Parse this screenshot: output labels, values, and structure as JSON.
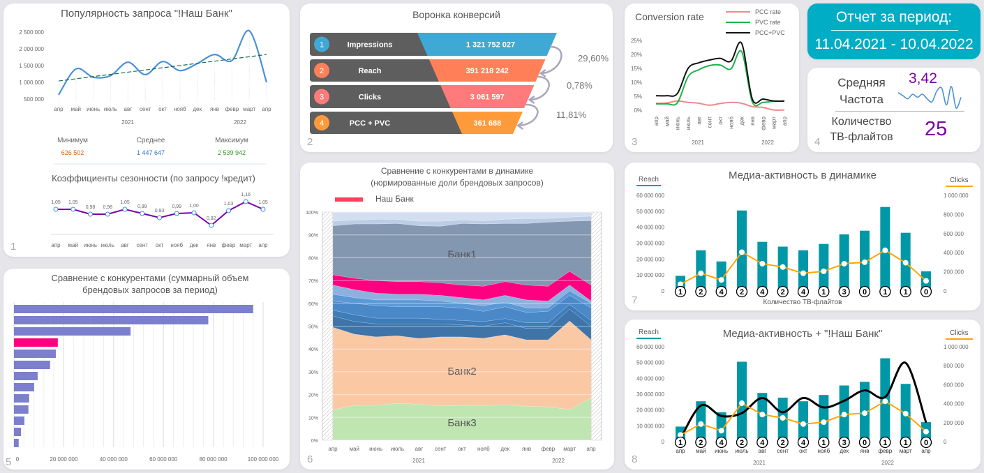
{
  "months": [
    "апр",
    "май",
    "июнь",
    "июль",
    "авг",
    "сент",
    "окт",
    "нояб",
    "дек",
    "янв",
    "февр",
    "март",
    "апр"
  ],
  "years": [
    "2021",
    "2022"
  ],
  "popularity": {
    "title": "Популярность  запроса \"!Наш Банк\"",
    "number": "1",
    "chart_data": {
      "type": "line",
      "title": "Популярность  запроса \"!Наш Банк\"",
      "y_ticks": [
        "2 500 000",
        "2 000 000",
        "1 500 000",
        "1 000 000",
        "500 000"
      ],
      "ylim": [
        500000,
        2500000
      ],
      "smoothed": true,
      "trendline": {
        "style": "dashed",
        "color": "#1a6b4a",
        "start": 1040000,
        "end": 1830000
      },
      "values": [
        626502,
        1400000,
        1150000,
        1200000,
        1600000,
        1230000,
        1620000,
        1350000,
        1560000,
        1830000,
        1650000,
        2539942,
        1000000
      ],
      "color": "#4a90d9"
    },
    "stats": [
      {
        "label": "Минимум",
        "value": "626 502",
        "color": "#e06010"
      },
      {
        "label": "Среднее",
        "value": "1 447 647",
        "color": "#2f78c4"
      },
      {
        "label": "Максимум",
        "value": "2 539 942",
        "color": "#3a9a2a"
      }
    ],
    "seasonality": {
      "title": "Коэффициенты сезонности (по запросу !кредит)",
      "chart_data": {
        "type": "line",
        "values": [
          1.05,
          1.05,
          0.98,
          0.98,
          1.05,
          0.99,
          0.93,
          0.99,
          1.0,
          0.82,
          1.03,
          1.16,
          1.05
        ],
        "labels": [
          "1,05",
          "1,05",
          "0,98",
          "0,98",
          "1,05",
          "0,99",
          "0,93",
          "0,99",
          "1,00",
          "0,82",
          "1,03",
          "1,16",
          "1,05"
        ],
        "color": "#7b00a8"
      }
    }
  },
  "funnel": {
    "title": "Воронка конверсий",
    "number": "2",
    "items": [
      {
        "n": "1",
        "label": "Impressions",
        "value": "1 321 752 027",
        "color": "#3fa8d4"
      },
      {
        "n": "2",
        "label": "Reach",
        "value": "391 218 242",
        "color": "#ff8058"
      },
      {
        "n": "3",
        "label": "Clicks",
        "value": "3 061 597",
        "color": "#ff7a7a"
      },
      {
        "n": "4",
        "label": "PCC + PVC",
        "value": "361 688",
        "color": "#ff9a3a"
      }
    ],
    "rates": [
      "29,60%",
      "0,78%",
      "11,81%"
    ]
  },
  "conversion": {
    "number": "3",
    "chart_data": {
      "type": "line",
      "title": "Conversion rate",
      "y_ticks": [
        "25%",
        "20%",
        "15%",
        "10%",
        "5%",
        "0%"
      ],
      "ylim": [
        0,
        25
      ],
      "series": [
        {
          "name": "PCC rate",
          "color": "#f08a8a",
          "values": [
            2.5,
            2.6,
            3.3,
            2.8,
            2.5,
            1.8,
            2.4,
            2.8,
            2.5,
            1.3,
            1.0,
            0.1,
            0.1
          ]
        },
        {
          "name": "PVC rate",
          "color": "#1db34a",
          "values": [
            2.3,
            2.3,
            2.7,
            12,
            14.5,
            16,
            16.2,
            14.8,
            21,
            3,
            2.8,
            3.2,
            3.2
          ]
        },
        {
          "name": "PCC+PVC",
          "color": "#111111",
          "values": [
            5.2,
            5.2,
            6,
            15,
            17,
            18,
            18.6,
            17.6,
            24,
            4,
            4,
            3.3,
            3.3
          ]
        }
      ]
    }
  },
  "report": {
    "title": "Отчет за период:",
    "period": "11.04.2021 - 10.04.2022"
  },
  "kpi": {
    "number": "4",
    "freq_label": [
      "Средняя",
      "Частота"
    ],
    "freq_value": "3,42",
    "freq_spark": [
      3.5,
      3.3,
      3.1,
      3.4,
      3.2,
      3.4,
      3.1,
      2.9,
      3.6,
      3.8,
      2.7,
      3.9,
      2.5,
      3.2
    ],
    "flights_label": [
      "Количество",
      "ТВ-флайтов"
    ],
    "flights_value": "25",
    "accent": "#7b00a8"
  },
  "competitors_total": {
    "number": "5",
    "chart_data": {
      "type": "bar",
      "orientation": "horizontal",
      "title": "Сравнение с конкурентами (суммарный объем брендовых запросов за период)",
      "x_ticks": [
        "0",
        "20 000 000",
        "40 000 000",
        "60 000 000",
        "80 000 000",
        "100 000 000"
      ],
      "xlim": [
        0,
        100000000
      ],
      "values": [
        96000000,
        78000000,
        46800000,
        17600000,
        16800000,
        14500000,
        9500000,
        8100000,
        6100000,
        5800000,
        4200000,
        2800000,
        1900000
      ],
      "highlight_index": 3,
      "color": "#7b7fce",
      "highlight_color": "#ff0080"
    }
  },
  "competitors_dynamic": {
    "number": "6",
    "chart_data": {
      "type": "area",
      "stacked": "percent",
      "title": "Сравнение с конкурентами в динамике",
      "subtitle": "(нормированные доли брендовых запросов)",
      "y_ticks": [
        "100%",
        "90%",
        "80%",
        "70%",
        "60%",
        "50%",
        "40%",
        "30%",
        "20%",
        "10%",
        "0%"
      ],
      "legend": "Наш Банк",
      "legend_color": "#ff4060",
      "series": [
        {
          "name": "Банк3",
          "color": "#bfe5b0",
          "values": [
            13.3,
            15.3,
            15.3,
            16.2,
            15.8,
            15.1,
            15.3,
            15.1,
            15.6,
            15.0,
            14.6,
            13.5,
            18.5
          ]
        },
        {
          "name": "Банк2",
          "color": "#fbc8a4",
          "values": [
            36.2,
            31.2,
            30.0,
            29.6,
            28.8,
            30.2,
            30.0,
            29.6,
            30.6,
            29.0,
            29.4,
            38.8,
            25.5
          ]
        },
        {
          "color": "#3f74a8",
          "values": [
            5.0,
            5.5,
            5.7,
            5.2,
            6.4,
            5.7,
            5.2,
            5.3,
            5.3,
            5.0,
            5.0,
            5.2,
            6.0
          ]
        },
        {
          "color": "#3e7cba",
          "values": [
            2.5,
            3.0,
            2.5,
            2.5,
            2.5,
            2.0,
            2.0,
            2.0,
            1.8,
            2.5,
            2.5,
            2.0,
            2.5
          ]
        },
        {
          "color": "#4a88c8",
          "values": [
            4.0,
            5.0,
            5.5,
            5.0,
            5.0,
            5.5,
            5.5,
            4.5,
            5.2,
            4.5,
            5.0,
            4.0,
            5.5
          ]
        },
        {
          "color": "#5b98d6",
          "values": [
            3.0,
            2.5,
            2.5,
            3.0,
            3.0,
            2.5,
            2.0,
            2.5,
            2.0,
            2.0,
            1.5,
            2.0,
            2.0
          ]
        },
        {
          "color": "#8db0de",
          "values": [
            4.0,
            3.5,
            3.0,
            2.5,
            2.5,
            2.5,
            2.5,
            2.5,
            3.0,
            3.5,
            3.0,
            2.5,
            1.0
          ]
        },
        {
          "name": "Наш Банк",
          "color": "#ff0080",
          "values": [
            4.5,
            5.0,
            5.5,
            5.5,
            5.5,
            5.5,
            5.5,
            6.0,
            6.0,
            6.5,
            6.5,
            6.0,
            7.0
          ]
        },
        {
          "name": "Банк1",
          "color": "#8497b0",
          "values": [
            21.5,
            23.8,
            24.8,
            25.5,
            24.5,
            24.8,
            27.0,
            27.3,
            25.5,
            27.0,
            28.1,
            22.0,
            28.2
          ]
        },
        {
          "color": "#bccde6",
          "values": [
            2.0,
            1.7,
            2.0,
            1.8,
            2.0,
            2.2,
            1.5,
            1.4,
            1.8,
            2.2,
            1.6,
            1.8,
            2.0
          ]
        },
        {
          "color": "#d3dff0",
          "values": [
            4.0,
            3.5,
            3.2,
            3.2,
            4.0,
            4.0,
            3.5,
            3.8,
            3.2,
            2.8,
            2.8,
            2.2,
            1.8
          ]
        }
      ]
    }
  },
  "media": {
    "number": "7",
    "title": "Медиа-активность в динамике",
    "reach_label": "Reach",
    "clicks_label": "Clicks",
    "xlabel": "Количество ТВ-флайтов",
    "chart_data": {
      "type": "bar+line",
      "left_ticks": [
        "60 000 000",
        "50 000 000",
        "40 000 000",
        "30 000 000",
        "20 000 000",
        "10 000 000",
        "0"
      ],
      "right_ticks": [
        "1 000 000",
        "800 000",
        "600 000",
        "400 000",
        "200 000",
        "0"
      ],
      "left_lim": [
        0,
        60000000
      ],
      "right_lim": [
        0,
        1000000
      ],
      "reach": [
        9500000,
        25500000,
        18500000,
        50500000,
        30800000,
        27800000,
        25500000,
        29500000,
        35500000,
        37800000,
        52700000,
        36500000,
        12300000
      ],
      "clicks": [
        70000,
        185000,
        115000,
        405000,
        285000,
        250000,
        185000,
        205000,
        285000,
        300000,
        425000,
        295000,
        105000
      ],
      "flights": [
        "1",
        "2",
        "4",
        "2",
        "4",
        "2",
        "4",
        "1",
        "3",
        "0",
        "1",
        "1",
        "0"
      ],
      "reach_color": "#0098a6",
      "clicks_color": "#ffa500"
    }
  },
  "media_bank": {
    "number": "8",
    "title": "Медиа-активность + \"!Наш Банк\"",
    "reach_label": "Reach",
    "clicks_label": "Clicks",
    "chart_data": {
      "type": "bar+line",
      "bank_line": [
        30000,
        380000,
        270000,
        300000,
        460000,
        310000,
        460000,
        360000,
        430000,
        540000,
        470000,
        830000,
        200000
      ],
      "bank_line_color": "#000000"
    }
  }
}
